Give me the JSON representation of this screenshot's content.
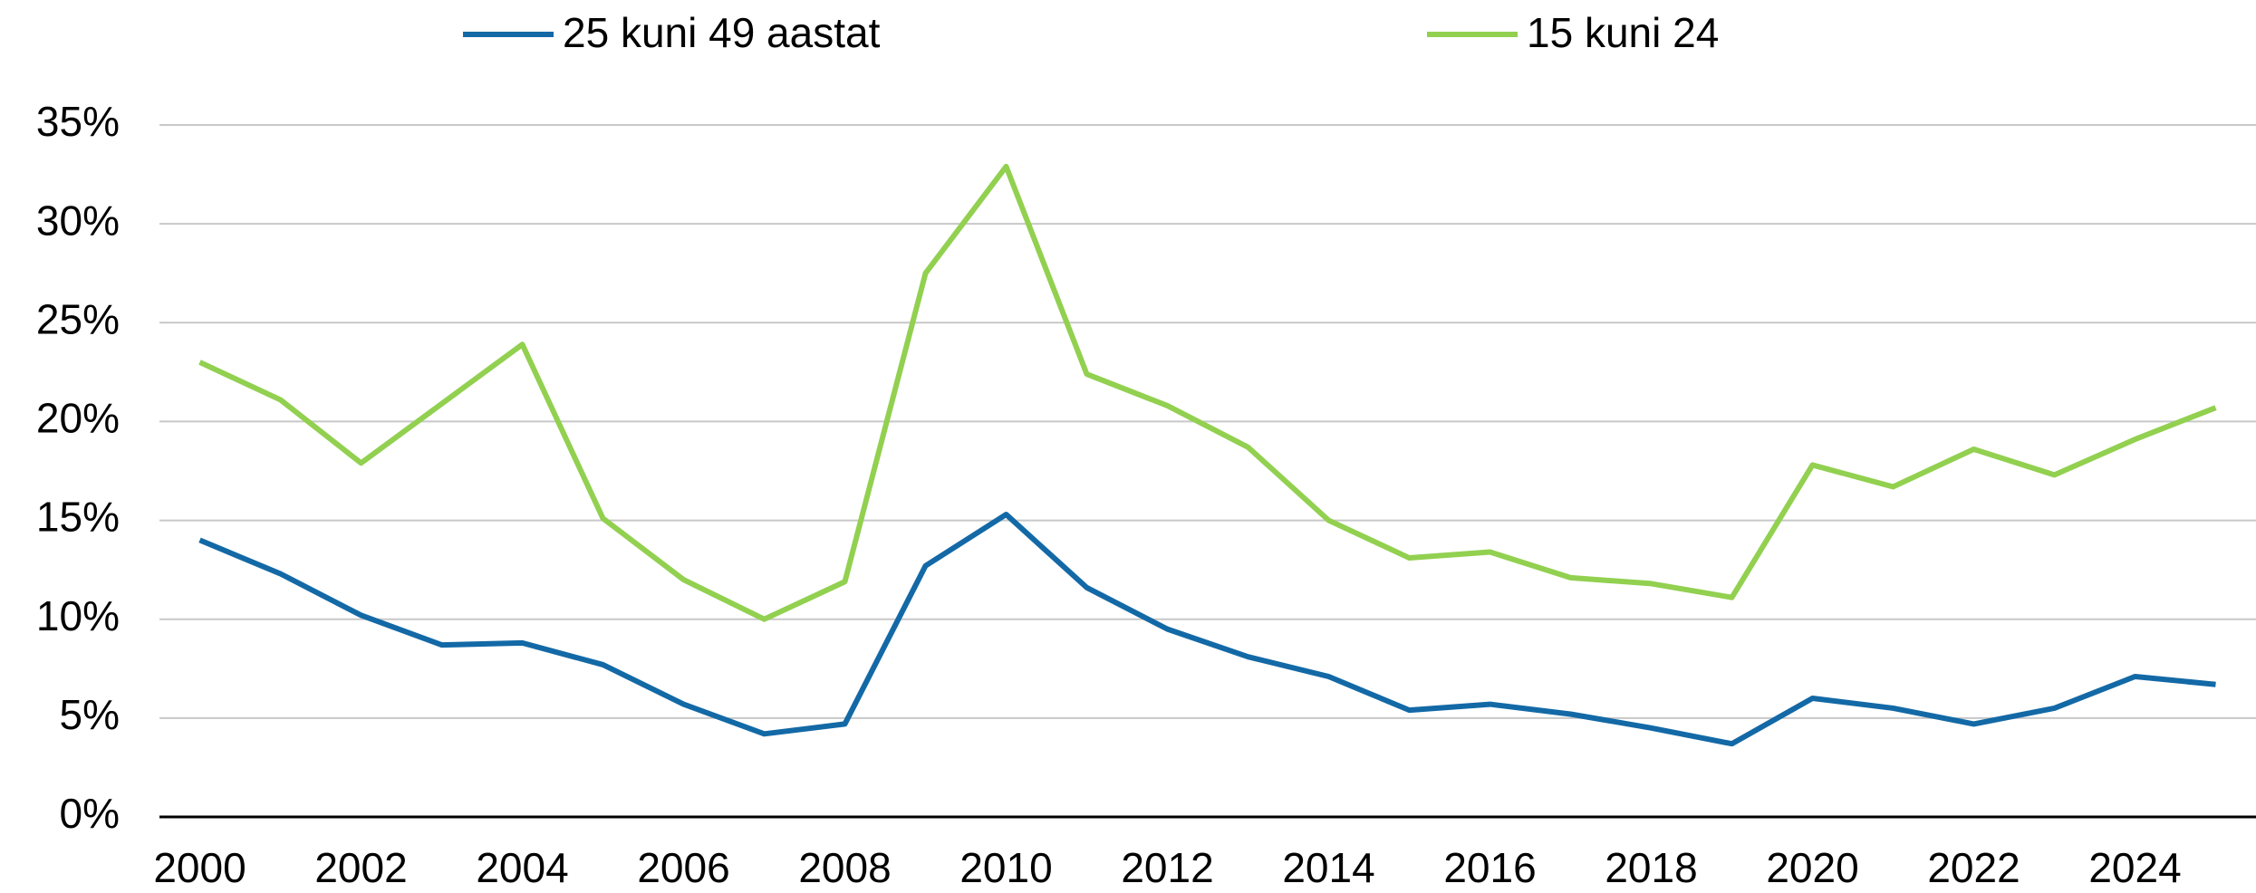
{
  "chart_data": {
    "type": "line",
    "x": [
      2000,
      2001,
      2002,
      2003,
      2004,
      2005,
      2006,
      2007,
      2008,
      2009,
      2010,
      2011,
      2012,
      2013,
      2014,
      2015,
      2016,
      2017,
      2018,
      2019,
      2020,
      2021,
      2022,
      2023,
      2024,
      2025
    ],
    "series": [
      {
        "name": "25 kuni 49 aastat",
        "color": "#1369a6",
        "values": [
          14.0,
          12.3,
          10.2,
          8.7,
          8.8,
          7.7,
          5.7,
          4.2,
          4.7,
          12.7,
          15.3,
          11.6,
          9.5,
          8.1,
          7.1,
          5.4,
          5.7,
          5.2,
          4.5,
          3.7,
          6.0,
          5.5,
          4.7,
          5.5,
          7.1,
          6.7
        ]
      },
      {
        "name": "15 kuni 24",
        "color": "#92d050",
        "values": [
          23.0,
          21.1,
          17.9,
          20.9,
          23.9,
          15.1,
          12.0,
          10.0,
          11.9,
          27.5,
          32.9,
          22.4,
          20.8,
          18.7,
          15.0,
          13.1,
          13.4,
          12.1,
          11.8,
          11.1,
          17.8,
          16.7,
          18.6,
          17.3,
          19.1,
          20.7
        ]
      }
    ],
    "xlim": [
      1999.5,
      2025.5
    ],
    "xticks": [
      2000,
      2002,
      2004,
      2006,
      2008,
      2010,
      2012,
      2014,
      2016,
      2018,
      2020,
      2022,
      2024
    ],
    "ylim": [
      0,
      35
    ],
    "yticks": [
      {
        "value": 0,
        "label": "0%"
      },
      {
        "value": 5,
        "label": "5%"
      },
      {
        "value": 10,
        "label": "10%"
      },
      {
        "value": 15,
        "label": "15%"
      },
      {
        "value": 20,
        "label": "20%"
      },
      {
        "value": 25,
        "label": "25%"
      },
      {
        "value": 30,
        "label": "30%"
      },
      {
        "value": 35,
        "label": "35%"
      }
    ],
    "grid": true,
    "legend": "top"
  }
}
